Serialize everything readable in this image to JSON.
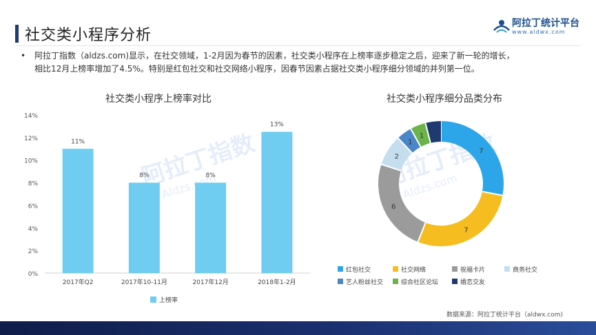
{
  "header": {
    "title": "社交类小程序分析",
    "logo_text": "阿拉丁统计平台",
    "logo_url": "www.aldwx.com"
  },
  "intro": {
    "bullet": "•",
    "line1": "阿拉丁指数（aldzs.com)显示，在社交领域，1-2月因为春节的因素，社交类小程序在上榜率逐步稳定之后，迎来了新一轮的增长，",
    "line2": "相比12月上榜率增加了4.5%。特别是红包社交和社交网络小程序，因春节因素占据社交类小程序细分领域的并列第一位。"
  },
  "watermark": {
    "text": "阿拉丁指数",
    "url": "Aldzs.com"
  },
  "footer": {
    "source": "数据来源：阿拉丁统计平台（aldwx.com)"
  },
  "colors": {
    "bar": "#6fcdf2",
    "title_accent": "#1f3b73"
  },
  "chart_data": [
    {
      "type": "bar",
      "title": "社交类小程序上榜率对比",
      "categories": [
        "2017年Q2",
        "2017年10-11月",
        "2017年12月",
        "2018年1-2月"
      ],
      "series": [
        {
          "name": "上榜率",
          "values": [
            11,
            8,
            8,
            12.5
          ],
          "labels": [
            "11%",
            "8%",
            "8%",
            "13%"
          ],
          "color": "#6fcdf2"
        }
      ],
      "ylim": [
        0,
        14
      ],
      "yticks": [
        "0%",
        "2%",
        "4%",
        "6%",
        "8%",
        "10%",
        "12%",
        "14%"
      ],
      "grid": false,
      "legend": "bottom"
    },
    {
      "type": "pie",
      "subtype": "donut",
      "title": "社交类小程序细分品类分布",
      "legend": "bottom",
      "slices": [
        {
          "name": "红包社交",
          "value": 7,
          "label": "7",
          "color": "#2ca6e8"
        },
        {
          "name": "社交网络",
          "value": 7,
          "label": "7",
          "color": "#f5bd1f"
        },
        {
          "name": "祝福卡片",
          "value": 6,
          "label": "6",
          "color": "#9b9b9b"
        },
        {
          "name": "商务社交",
          "value": 2,
          "label": "2",
          "color": "#c4def0"
        },
        {
          "name": "艺人粉丝社交",
          "value": 1,
          "label": "1",
          "color": "#4a86c8"
        },
        {
          "name": "综合社区论坛",
          "value": 1,
          "label": "1",
          "color": "#6cb34b"
        },
        {
          "name": "婚恋交友",
          "value": 1,
          "label": "",
          "color": "#1f3a6e"
        }
      ]
    }
  ]
}
